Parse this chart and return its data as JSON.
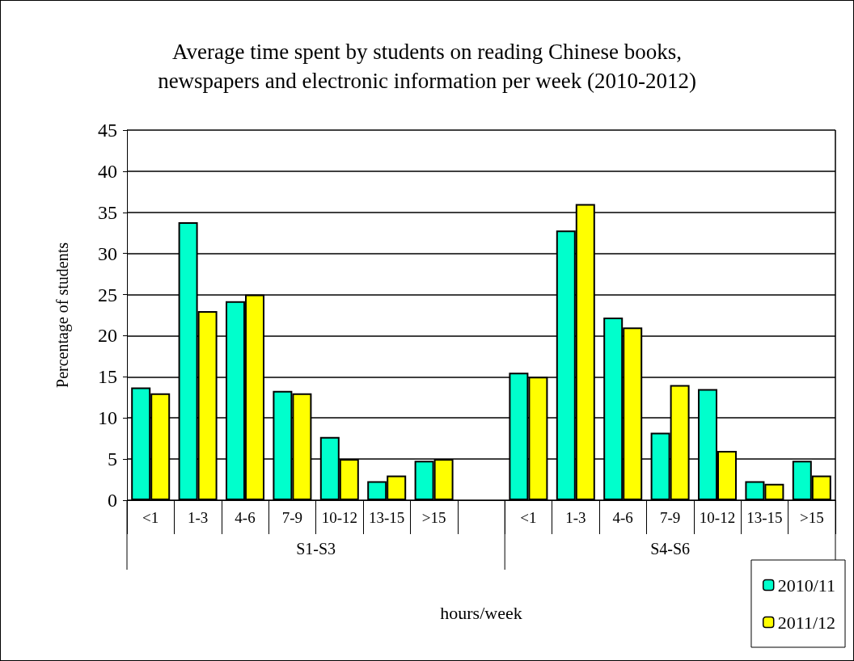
{
  "chart_data": {
    "type": "bar",
    "title": "Average time spent by students on reading Chinese books,\nnewspapers and electronic information per week (2010-2012)",
    "xlabel": "hours/week",
    "ylabel": "Percentage of students",
    "categories": [
      "<1",
      "1-3",
      "4-6",
      "7-9",
      "10-12",
      "13-15",
      ">15",
      null,
      "<1",
      "1-3",
      "4-6",
      "7-9",
      "10-12",
      "13-15",
      ">15"
    ],
    "series": [
      {
        "name": "2010/11",
        "color": "#00ffcc",
        "values": [
          13.7,
          33.8,
          24.2,
          13.3,
          7.7,
          2.3,
          4.8,
          null,
          15.5,
          32.8,
          22.2,
          8.2,
          13.5,
          2.3,
          4.8
        ]
      },
      {
        "name": "2011/12",
        "color": "#ffff00",
        "values": [
          13,
          23,
          25,
          13,
          5,
          3,
          5,
          null,
          15,
          36,
          21,
          14,
          6,
          2,
          3
        ]
      }
    ],
    "annotations": [
      "S1-S3",
      "S4-S6"
    ],
    "ylim": [
      0,
      45
    ],
    "yticks": [
      0,
      5,
      10,
      15,
      20,
      25,
      30,
      35,
      40,
      45
    ],
    "grid": "y",
    "legend": "bottom right"
  }
}
